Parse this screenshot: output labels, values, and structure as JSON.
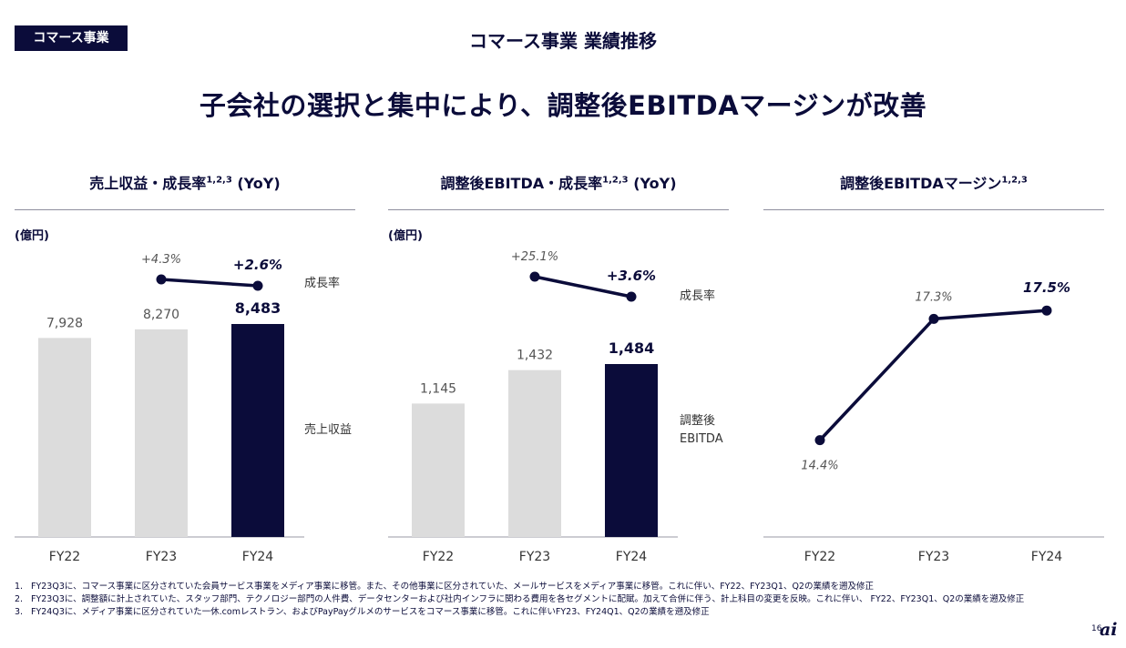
{
  "header": {
    "tag": "コマース事業",
    "title": "コマース事業 業績推移",
    "headline": "子会社の選択と集中により、調整後EBITDAマージンが改善"
  },
  "colors": {
    "navy": "#0b0c3a",
    "bar_grey": "#dcdcdc",
    "axis": "#9a9aa6"
  },
  "chart_data": [
    {
      "type": "bar",
      "title": "売上収益・成長率",
      "title_sup": "1,2,3",
      "title_suffix": " (YoY)",
      "unit": "(億円)",
      "categories": [
        "FY22",
        "FY23",
        "FY24"
      ],
      "values": [
        7928,
        8270,
        8483
      ],
      "value_labels": [
        "7,928",
        "8,270",
        "8,483"
      ],
      "bar_series_label": "売上収益",
      "growth": {
        "label": "成長率",
        "x": [
          "FY23",
          "FY24"
        ],
        "values": [
          4.3,
          2.6
        ],
        "labels": [
          "+4.3%",
          "+2.6%"
        ]
      },
      "highlight": "FY24"
    },
    {
      "type": "bar",
      "title": "調整後EBITDA・成長率",
      "title_sup": "1,2,3",
      "title_suffix": " (YoY)",
      "unit": "(億円)",
      "categories": [
        "FY22",
        "FY23",
        "FY24"
      ],
      "values": [
        1145,
        1432,
        1484
      ],
      "value_labels": [
        "1,145",
        "1,432",
        "1,484"
      ],
      "bar_series_label_lines": [
        "調整後",
        "EBITDA"
      ],
      "growth": {
        "label": "成長率",
        "x": [
          "FY23",
          "FY24"
        ],
        "values": [
          25.1,
          3.6
        ],
        "labels": [
          "+25.1%",
          "+3.6%"
        ]
      },
      "highlight": "FY24"
    },
    {
      "type": "line",
      "title": "調整後EBITDAマージン",
      "title_sup": "1,2,3",
      "categories": [
        "FY22",
        "FY23",
        "FY24"
      ],
      "values": [
        14.4,
        17.3,
        17.5
      ],
      "value_labels": [
        "14.4%",
        "17.3%",
        "17.5%"
      ],
      "highlight": "FY24"
    }
  ],
  "footnotes": [
    {
      "num": "1.",
      "text": "FY23Q3に、コマース事業に区分されていた会員サービス事業をメディア事業に移管。また、その他事業に区分されていた、メールサービスをメディア事業に移管。これに伴い、FY22、FY23Q1、Q2の業績を遡及修正"
    },
    {
      "num": "2.",
      "text": "FY23Q3に、調整額に計上されていた、スタッフ部門、テクノロジー部門の人件費、データセンターおよび社内インフラに関わる費用を各セグメントに配賦。加えて合併に伴う、計上科目の変更を反映。これに伴い、 FY22、FY23Q1、Q2の業績を遡及修正"
    },
    {
      "num": "3.",
      "text": "FY24Q3に、メディア事業に区分されていた一休.comレストラン、およびPayPayグルメのサービスをコマース事業に移管。これに伴いFY23、FY24Q1、Q2の業績を遡及修正"
    }
  ],
  "page_number": "16",
  "logo_text": "ai"
}
